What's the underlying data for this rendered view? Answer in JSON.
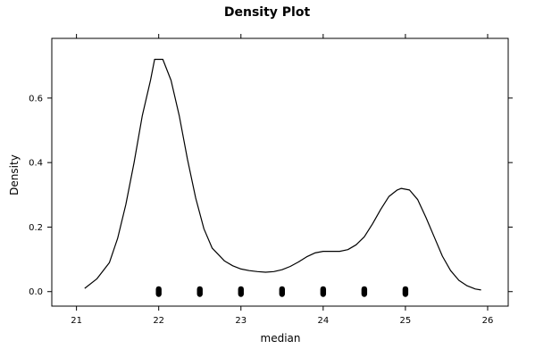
{
  "chart_data": {
    "type": "line",
    "title": "Density Plot",
    "xlabel": "median",
    "ylabel": "Density",
    "xlim": [
      20.7,
      26.25
    ],
    "ylim": [
      -0.045,
      0.785
    ],
    "x_ticks": [
      "21",
      "22",
      "23",
      "24",
      "25",
      "26"
    ],
    "y_ticks": [
      "0.0",
      "0.2",
      "0.4",
      "0.6"
    ],
    "grid": false,
    "legend": "none",
    "line_color": "#000000",
    "series": [
      {
        "x": [
          21.1,
          21.25,
          21.4,
          21.5,
          21.6,
          21.7,
          21.8,
          21.9,
          21.95,
          22.05,
          22.15,
          22.25,
          22.35,
          22.45,
          22.55,
          22.65,
          22.8,
          22.9,
          23.0,
          23.1,
          23.2,
          23.3,
          23.4,
          23.5,
          23.6,
          23.7,
          23.8,
          23.9,
          24.0,
          24.1,
          24.2,
          24.3,
          24.4,
          24.5,
          24.6,
          24.7,
          24.8,
          24.9,
          24.95,
          25.05,
          25.15,
          25.25,
          25.35,
          25.45,
          25.55,
          25.65,
          25.75,
          25.85,
          25.92
        ],
        "y": [
          0.01,
          0.04,
          0.09,
          0.165,
          0.27,
          0.4,
          0.545,
          0.655,
          0.72,
          0.72,
          0.655,
          0.545,
          0.41,
          0.29,
          0.195,
          0.135,
          0.095,
          0.08,
          0.07,
          0.065,
          0.062,
          0.06,
          0.062,
          0.068,
          0.078,
          0.092,
          0.108,
          0.12,
          0.125,
          0.125,
          0.125,
          0.13,
          0.145,
          0.17,
          0.21,
          0.255,
          0.295,
          0.315,
          0.32,
          0.315,
          0.285,
          0.23,
          0.17,
          0.11,
          0.065,
          0.035,
          0.018,
          0.008,
          0.005
        ]
      }
    ],
    "rug_points": [
      22,
      22.5,
      23,
      23.5,
      24,
      24.5,
      25
    ]
  }
}
